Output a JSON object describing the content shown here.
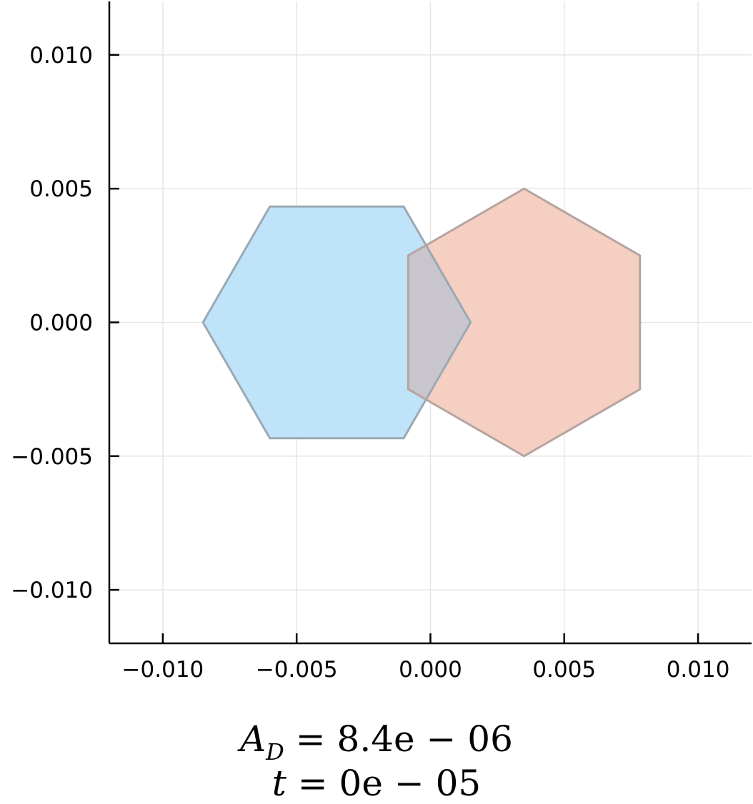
{
  "chart_data": {
    "type": "area",
    "title": "",
    "xlabel": "",
    "ylabel": "",
    "xlim": [
      -0.012,
      0.012
    ],
    "ylim": [
      -0.012,
      0.012
    ],
    "grid": true,
    "legend": "none",
    "x_ticks": [
      -0.01,
      -0.005,
      0.0,
      0.005,
      0.01
    ],
    "y_ticks": [
      -0.01,
      -0.005,
      0.0,
      0.005,
      0.01
    ],
    "x_tick_labels": [
      "−0.010",
      "−0.005",
      "0.000",
      "0.005",
      "0.010"
    ],
    "y_tick_labels": [
      "−0.010",
      "−0.005",
      "0.000",
      "0.005",
      "0.010"
    ],
    "series": [
      {
        "fill": "#bfe3f8",
        "edge": "#9aa9b3",
        "points": [
          [
            -0.0085,
            0.0
          ],
          [
            -0.006,
            0.00433
          ],
          [
            -0.001,
            0.00433
          ],
          [
            0.0015,
            0.0
          ],
          [
            -0.001,
            -0.00433
          ],
          [
            -0.006,
            -0.00433
          ]
        ]
      },
      {
        "fill": "#f4cfc2",
        "edge": "#b6a4a0",
        "points": [
          [
            0.0035,
            0.005
          ],
          [
            0.00783,
            0.0025
          ],
          [
            0.00783,
            -0.0025
          ],
          [
            0.0035,
            -0.005
          ],
          [
            -0.00083,
            -0.0025
          ],
          [
            -0.00083,
            0.0025
          ]
        ]
      }
    ],
    "overlap_fill": "#c8c5cd"
  },
  "caption": {
    "line1": {
      "lhs": "A",
      "sub": "D",
      "rhs": "= 8.4e − 06"
    },
    "line2": {
      "lhs": "t",
      "rhs": "= 0e − 05"
    }
  }
}
